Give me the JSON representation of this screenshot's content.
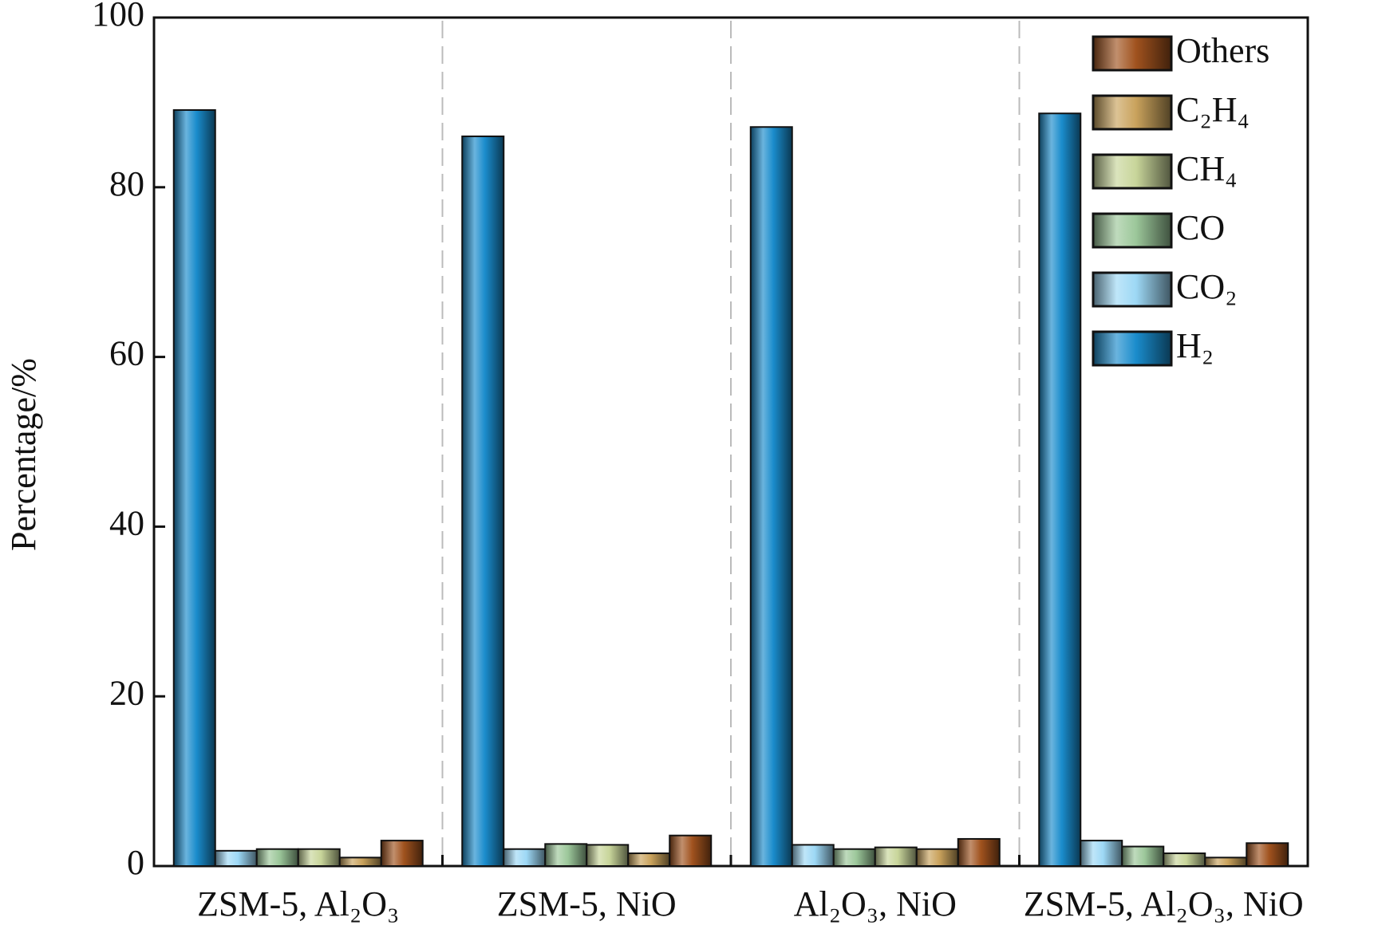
{
  "chart_data": {
    "type": "bar",
    "y_label": "Percentage/%",
    "categories": [
      "ZSM-5, Al₂O₃",
      "ZSM-5, NiO",
      "Al₂O₃, NiO",
      "ZSM-5, Al₂O₃, NiO"
    ],
    "series": [
      {
        "name": "H₂",
        "color": "#1a8ccc",
        "values": [
          89.1,
          86.0,
          87.1,
          88.7
        ]
      },
      {
        "name": "CO₂",
        "color": "#9dd8f5",
        "values": [
          1.8,
          2.0,
          2.5,
          3.0
        ]
      },
      {
        "name": "CO",
        "color": "#9cc79a",
        "values": [
          2.0,
          2.6,
          2.0,
          2.3
        ]
      },
      {
        "name": "CH₄",
        "color": "#c8d59a",
        "values": [
          2.0,
          2.5,
          2.2,
          1.5
        ]
      },
      {
        "name": "C₂H₄",
        "color": "#c9a25c",
        "values": [
          1.0,
          1.5,
          2.0,
          1.0
        ]
      },
      {
        "name": "Others",
        "color": "#a0521e",
        "values": [
          3.0,
          3.6,
          3.2,
          2.7
        ]
      }
    ],
    "ylim": [
      0,
      100
    ],
    "yticks": [
      0,
      20,
      40,
      60,
      80,
      100
    ],
    "legend": "top-right"
  }
}
